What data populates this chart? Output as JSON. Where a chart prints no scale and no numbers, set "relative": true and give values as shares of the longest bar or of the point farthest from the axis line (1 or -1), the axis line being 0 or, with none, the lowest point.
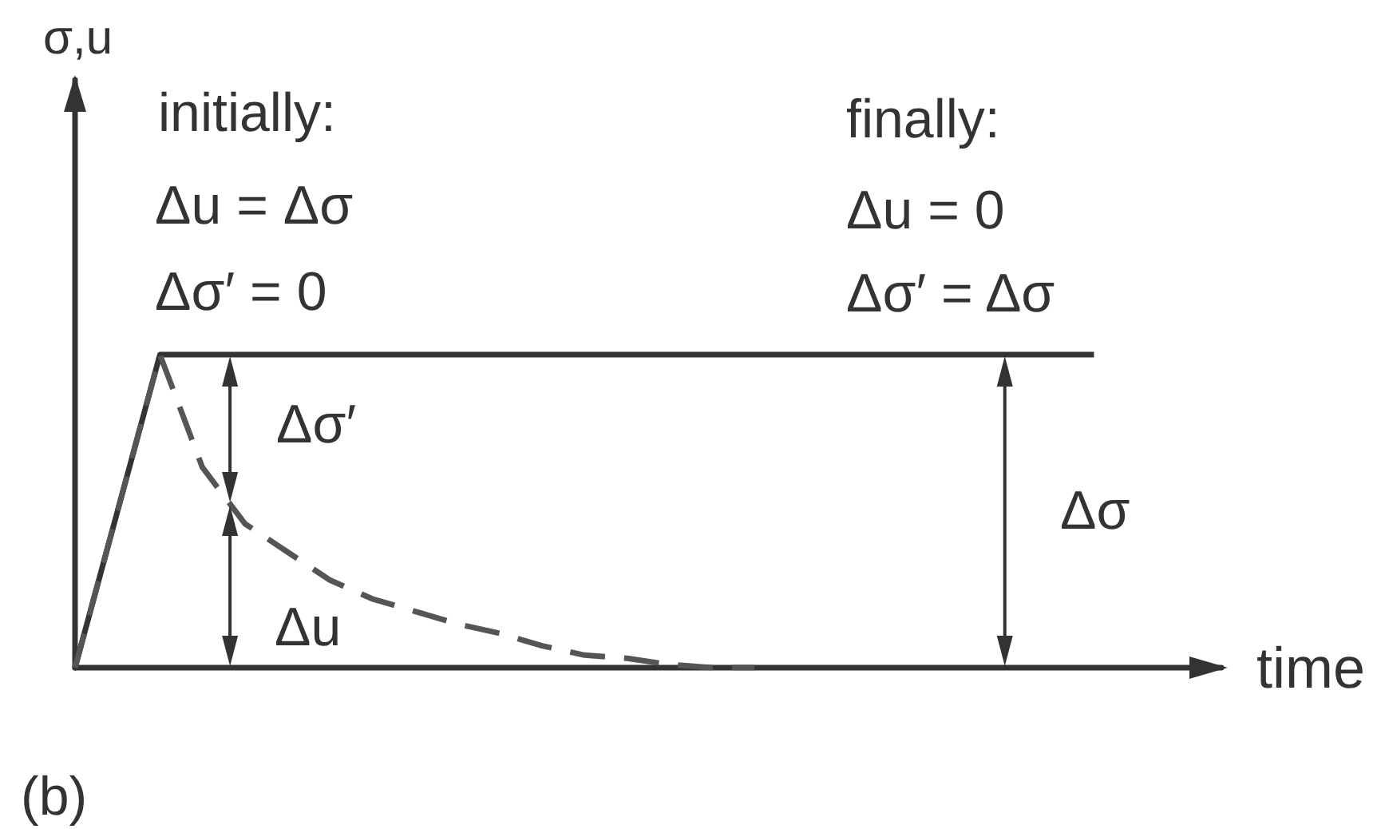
{
  "chart_data": {
    "type": "line",
    "xlabel": "time",
    "relative": true,
    "tick_labels": false,
    "categories": [
      null,
      null,
      null,
      null,
      null,
      null,
      null,
      null,
      null,
      null,
      null,
      null,
      null,
      null,
      null,
      null,
      null,
      null,
      null,
      null,
      null,
      null,
      null,
      null,
      null,
      null,
      null,
      null
    ],
    "series": [
      {
        "color": "#333333",
        "line_style": "solid",
        "values": [
          0,
          0.5,
          1,
          1,
          1,
          1,
          1,
          1,
          1,
          1,
          1,
          1,
          1,
          1,
          1,
          1,
          1,
          1,
          1,
          1,
          1,
          1,
          1,
          1,
          1,
          null,
          null,
          null
        ]
      },
      {
        "color": "#555555",
        "line_style": "dashed",
        "values": [
          0,
          0.5,
          1,
          0.64,
          0.46,
          0.37,
          0.28,
          0.22,
          0.18,
          0.14,
          0.11,
          0.07,
          0.04,
          0.03,
          0.01,
          0,
          0,
          null,
          null,
          null,
          null,
          null,
          null,
          null,
          null,
          null,
          null,
          null
        ]
      }
    ],
    "annotations": [
      "σ,u",
      "initially:",
      "Δu = Δσ",
      "Δσ′ = 0",
      "finally:",
      "Δu = 0",
      "Δσ′ = Δσ",
      "Δσ′",
      "Δu",
      "Δσ",
      "(b)"
    ]
  }
}
